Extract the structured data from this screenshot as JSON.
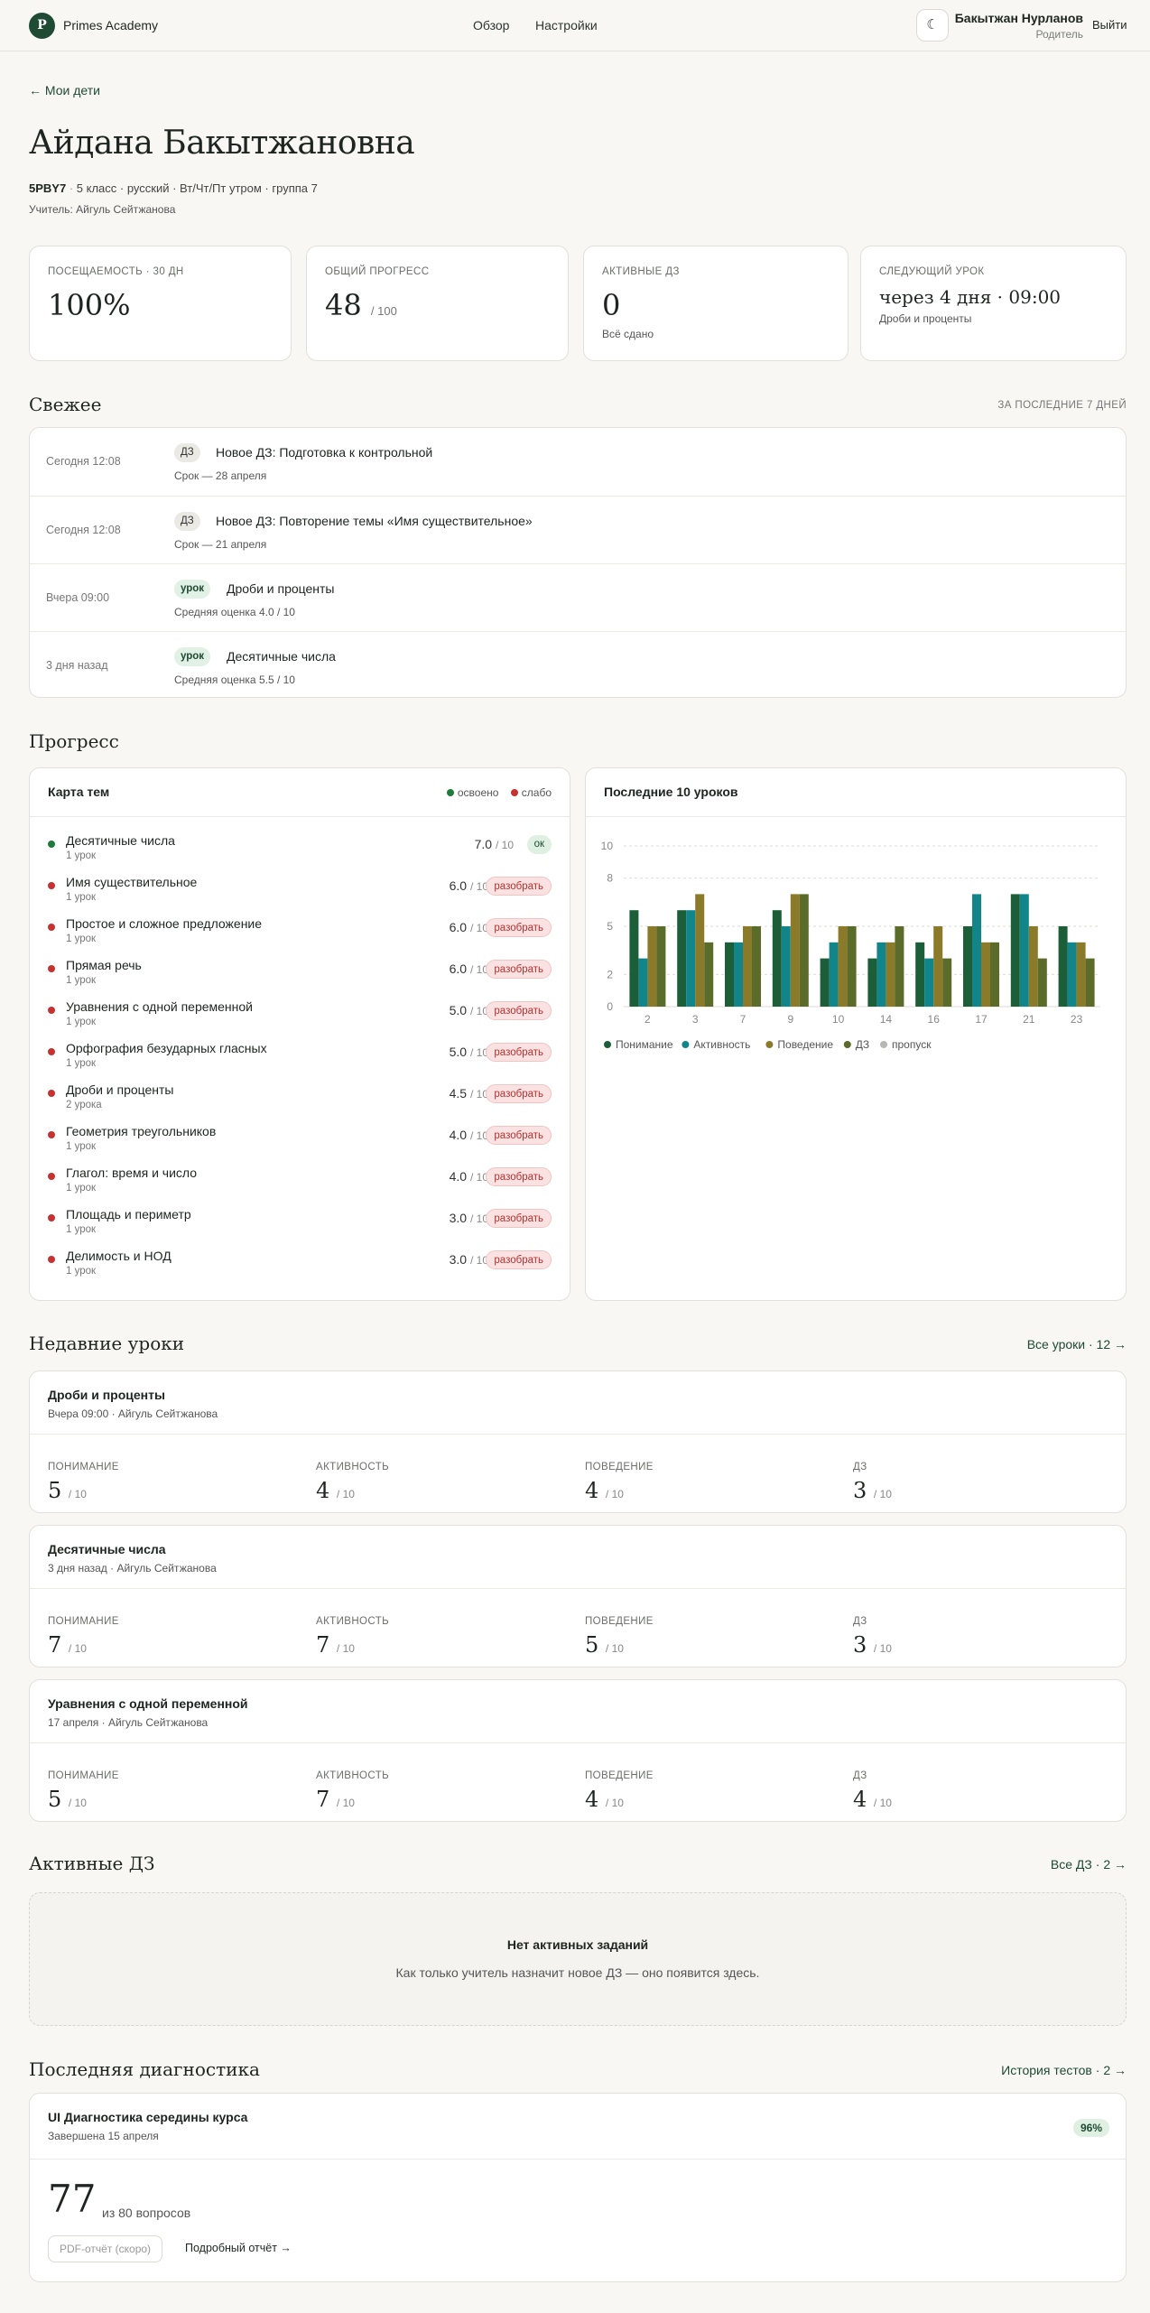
{
  "header": {
    "logo_letter": "P",
    "brand": "Primes Academy",
    "nav": [
      "Обзор",
      "Настройки"
    ],
    "theme_icon": "☾",
    "user_name": "Бакытжан Нурланов",
    "user_role": "Родитель",
    "logout": "Выйти"
  },
  "back_link": "← Мои дети",
  "student": {
    "name": "Айдана Бакытжановна",
    "code": "5PBY7",
    "details": "5 класс · русский · Вт/Чт/Пт утром · группа 7",
    "teacher": "Учитель: Айгуль Сейтжанова"
  },
  "stats": [
    {
      "label": "Посещаемость · 30 дн",
      "value": "100%",
      "suffix": "",
      "sub": ""
    },
    {
      "label": "Общий прогресс",
      "value": "48",
      "suffix": "/ 100",
      "sub": ""
    },
    {
      "label": "Активные ДЗ",
      "value": "0",
      "suffix": "",
      "sub": "Всё сдано"
    },
    {
      "label": "Следующий урок",
      "value": "через 4 дня · 09:00",
      "suffix": "",
      "sub": "Дроби и проценты"
    }
  ],
  "feed": {
    "title": "Свежее",
    "aside": "За последние 7 дней",
    "items": [
      {
        "time": "Сегодня 12:08",
        "tag": "ДЗ",
        "kind": "dz",
        "title": "Новое ДЗ: Подготовка к контрольной",
        "sub": "Срок — 28 апреля"
      },
      {
        "time": "Сегодня 12:08",
        "tag": "ДЗ",
        "kind": "dz",
        "title": "Новое ДЗ: Повторение темы «Имя существительное»",
        "sub": "Срок — 21 апреля"
      },
      {
        "time": "Вчера 09:00",
        "tag": "урок",
        "kind": "lesson",
        "title": "Дроби и проценты",
        "sub": "Средняя оценка 4.0 / 10"
      },
      {
        "time": "3 дня назад",
        "tag": "урок",
        "kind": "lesson",
        "title": "Десятичные числа",
        "sub": "Средняя оценка 5.5 / 10"
      }
    ]
  },
  "progress": {
    "title": "Прогресс",
    "topics_panel": "Карта тем",
    "legend_ok": "освоено",
    "legend_bad": "слабо",
    "colors": {
      "ok": "#1f7a3c",
      "bad": "#c8312f"
    },
    "topics": [
      {
        "name": "Десятичные числа",
        "count": "1 урок",
        "score": "7.0",
        "of": "/ 10",
        "status": "ok",
        "badge": "ок"
      },
      {
        "name": "Имя существительное",
        "count": "1 урок",
        "score": "6.0",
        "of": "/ 10",
        "status": "bad",
        "badge": "разобрать"
      },
      {
        "name": "Простое и сложное предложение",
        "count": "1 урок",
        "score": "6.0",
        "of": "/ 10",
        "status": "bad",
        "badge": "разобрать"
      },
      {
        "name": "Прямая речь",
        "count": "1 урок",
        "score": "6.0",
        "of": "/ 10",
        "status": "bad",
        "badge": "разобрать"
      },
      {
        "name": "Уравнения с одной переменной",
        "count": "1 урок",
        "score": "5.0",
        "of": "/ 10",
        "status": "bad",
        "badge": "разобрать"
      },
      {
        "name": "Орфография безударных гласных",
        "count": "1 урок",
        "score": "5.0",
        "of": "/ 10",
        "status": "bad",
        "badge": "разобрать"
      },
      {
        "name": "Дроби и проценты",
        "count": "2 урока",
        "score": "4.5",
        "of": "/ 10",
        "status": "bad",
        "badge": "разобрать"
      },
      {
        "name": "Геометрия треугольников",
        "count": "1 урок",
        "score": "4.0",
        "of": "/ 10",
        "status": "bad",
        "badge": "разобрать"
      },
      {
        "name": "Глагол: время и число",
        "count": "1 урок",
        "score": "4.0",
        "of": "/ 10",
        "status": "bad",
        "badge": "разобрать"
      },
      {
        "name": "Площадь и периметр",
        "count": "1 урок",
        "score": "3.0",
        "of": "/ 10",
        "status": "bad",
        "badge": "разобрать"
      },
      {
        "name": "Делимость и НОД",
        "count": "1 урок",
        "score": "3.0",
        "of": "/ 10",
        "status": "bad",
        "badge": "разобрать"
      }
    ],
    "chart_panel": "Последние 10 уроков"
  },
  "chart_data": {
    "type": "bar",
    "title": "",
    "categories": [
      "2",
      "3",
      "7",
      "9",
      "10",
      "14",
      "16",
      "17",
      "21",
      "23"
    ],
    "yticks": [
      0,
      2,
      5,
      8,
      10
    ],
    "ylim": [
      0,
      10
    ],
    "grid": true,
    "legend_position": "bottom-left",
    "legend_extra": {
      "name": "пропуск",
      "color": "#b8b8b3"
    },
    "series": [
      {
        "name": "Понимание",
        "color": "#1b5e37",
        "values": [
          6,
          6,
          4,
          6,
          3,
          3,
          4,
          5,
          7,
          5
        ]
      },
      {
        "name": "Активность",
        "color": "#12858a",
        "values": [
          3,
          6,
          4,
          5,
          4,
          4,
          3,
          7,
          7,
          4
        ]
      },
      {
        "name": "Поведение",
        "color": "#8a7a2a",
        "values": [
          5,
          7,
          5,
          7,
          5,
          4,
          5,
          4,
          5,
          4
        ]
      },
      {
        "name": "ДЗ",
        "color": "#5a6b2a",
        "values": [
          5,
          4,
          5,
          7,
          5,
          5,
          3,
          4,
          3,
          3
        ]
      }
    ]
  },
  "recent_lessons": {
    "title": "Недавние уроки",
    "link": "Все уроки · 12 →",
    "metric_labels": [
      "Понимание",
      "Активность",
      "Поведение",
      "ДЗ"
    ],
    "of": "/ 10",
    "items": [
      {
        "title": "Дроби и проценты",
        "sub": "Вчера 09:00 · Айгуль Сейтжанова",
        "values": [
          "5",
          "4",
          "4",
          "3"
        ]
      },
      {
        "title": "Десятичные числа",
        "sub": "3 дня назад · Айгуль Сейтжанова",
        "values": [
          "7",
          "7",
          "5",
          "3"
        ]
      },
      {
        "title": "Уравнения с одной переменной",
        "sub": "17 апреля · Айгуль Сейтжанова",
        "values": [
          "5",
          "7",
          "4",
          "4"
        ]
      }
    ]
  },
  "active_hw": {
    "title": "Активные ДЗ",
    "link": "Все ДЗ · 2 →",
    "empty_title": "Нет активных заданий",
    "empty_sub": "Как только учитель назначит новое ДЗ — оно появится здесь."
  },
  "diagnostics": {
    "title": "Последняя диагностика",
    "link": "История тестов · 2 →",
    "test_title": "UI Диагностика середины курса",
    "test_sub": "Завершена 15 апреля",
    "percent": "96%",
    "score": "77",
    "score_of": "из 80 вопросов",
    "pdf_button": "PDF-отчёт (скоро)",
    "report_link": "Подробный отчёт →"
  }
}
